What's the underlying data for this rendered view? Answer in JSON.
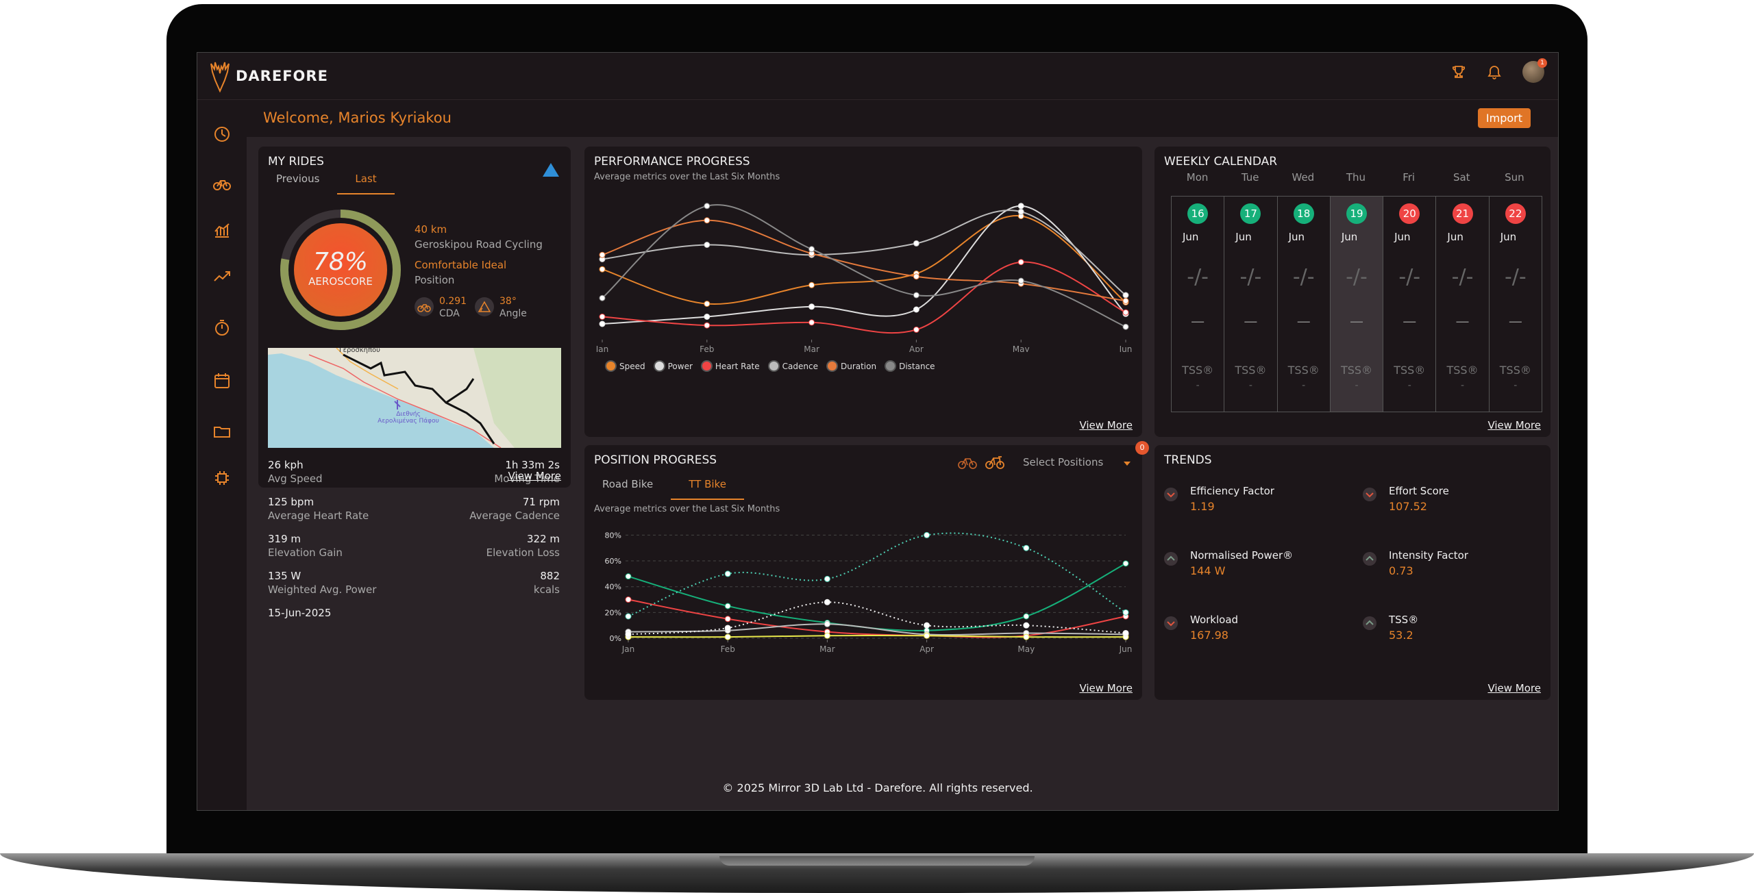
{
  "app": {
    "logo_text": "DAREFORE",
    "avatar_badge": "1"
  },
  "welcome": {
    "text": "Welcome, Marios Kyriakou",
    "import_label": "Import"
  },
  "colors": {
    "accent": "#e7842b",
    "green": "#16b07a",
    "red": "#ef4444"
  },
  "sidebar": {
    "icons": [
      "dashboard-icon",
      "bike-icon",
      "bar-chart-icon",
      "trend-icon",
      "stopwatch-icon",
      "calendar-icon",
      "folder-icon",
      "chip-icon"
    ]
  },
  "my_rides": {
    "title": "MY RIDES",
    "tabs": [
      "Previous",
      "Last"
    ],
    "active_tab": "Last",
    "score": {
      "value": "78%",
      "label": "AEROSCORE",
      "fill": 0.78
    },
    "distance": "40 km",
    "route": "Geroskipou Road Cycling",
    "position_label": "Comfortable Ideal",
    "position_sub": "Position",
    "cda_value": "0.291",
    "cda_label": "CDA",
    "angle_value": "38°",
    "angle_label": "Angle",
    "map_label_1": "Γεροσκήπου",
    "map_label_2": "Διεθνής Αερολιμένας Πάφου",
    "stats": [
      {
        "v": "26 kph",
        "l": "Avg Speed",
        "rv": "1h 33m 2s",
        "rl": "Moving Time"
      },
      {
        "v": "125 bpm",
        "l": "Average Heart Rate",
        "rv": "71 rpm",
        "rl": "Average Cadence"
      },
      {
        "v": "319 m",
        "l": "Elevation Gain",
        "rv": "322 m",
        "rl": "Elevation Loss"
      },
      {
        "v": "135 W",
        "l": "Weighted Avg. Power",
        "rv": "882",
        "rl": "kcals"
      }
    ],
    "date": "15-Jun-2025",
    "view_more": "View More"
  },
  "performance": {
    "title": "PERFORMANCE PROGRESS",
    "subtitle": "Average metrics over the Last Six Months",
    "view_more": "View More"
  },
  "position": {
    "title": "POSITION PROGRESS",
    "select_label": "Select Positions",
    "tabs": [
      "Road Bike",
      "TT Bike"
    ],
    "active_tab": "TT Bike",
    "subtitle": "Average metrics over the Last Six Months",
    "view_more": "View More",
    "badge": "0"
  },
  "calendar": {
    "title": "WEEKLY CALENDAR",
    "days": [
      {
        "name": "Mon",
        "date": "16",
        "month": "Jun",
        "color": "#16b07a",
        "today": false
      },
      {
        "name": "Tue",
        "date": "17",
        "month": "Jun",
        "color": "#16b07a",
        "today": false
      },
      {
        "name": "Wed",
        "date": "18",
        "month": "Jun",
        "color": "#16b07a",
        "today": false
      },
      {
        "name": "Thu",
        "date": "19",
        "month": "Jun",
        "color": "#16b07a",
        "today": true
      },
      {
        "name": "Fri",
        "date": "20",
        "month": "Jun",
        "color": "#ef4444",
        "today": false
      },
      {
        "name": "Sat",
        "date": "21",
        "month": "Jun",
        "color": "#ef4444",
        "today": false
      },
      {
        "name": "Sun",
        "date": "22",
        "month": "Jun",
        "color": "#ef4444",
        "today": false
      }
    ],
    "placeholder": "-/-",
    "small_placeholder": "—",
    "tss_label": "TSS®",
    "tss_value": "-",
    "view_more": "View More"
  },
  "trends": {
    "title": "TRENDS",
    "items": [
      {
        "name": "Efficiency Factor",
        "value": "1.19",
        "dir": "down"
      },
      {
        "name": "Effort Score",
        "value": "107.52",
        "dir": "down"
      },
      {
        "name": "Normalised Power®",
        "value": "144 W",
        "dir": "up"
      },
      {
        "name": "Intensity Factor",
        "value": "0.73",
        "dir": "up"
      },
      {
        "name": "Workload",
        "value": "167.98",
        "dir": "down"
      },
      {
        "name": "TSS®",
        "value": "53.2",
        "dir": "up"
      }
    ],
    "view_more": "View More"
  },
  "footer": "© 2025 Mirror 3D Lab Ltd - Darefore. All rights reserved.",
  "chart_data": [
    {
      "type": "line",
      "title": "PERFORMANCE PROGRESS",
      "subtitle": "Average metrics over the Last Six Months",
      "categories": [
        "Jan",
        "Feb",
        "Mar",
        "Apr",
        "May",
        "Jun"
      ],
      "ylim": [
        0,
        100
      ],
      "grid": false,
      "legend": "bottom-left",
      "series": [
        {
          "name": "Speed",
          "color": "#e7842b",
          "values": [
            48,
            24,
            37,
            45,
            85,
            25
          ]
        },
        {
          "name": "Power",
          "color": "#dddddd",
          "values": [
            10,
            15,
            22,
            20,
            92,
            17
          ]
        },
        {
          "name": "Heart Rate",
          "color": "#ef4444",
          "values": [
            15,
            9,
            11,
            6,
            53,
            18
          ]
        },
        {
          "name": "Cadence",
          "color": "#bbbbbb",
          "values": [
            55,
            65,
            58,
            66,
            88,
            30
          ]
        },
        {
          "name": "Duration",
          "color": "#e57a3c",
          "values": [
            58,
            82,
            59,
            43,
            38,
            26
          ]
        },
        {
          "name": "Distance",
          "color": "#888888",
          "values": [
            28,
            92,
            62,
            30,
            40,
            8
          ]
        }
      ]
    },
    {
      "type": "line",
      "title": "POSITION PROGRESS",
      "subtitle": "Average metrics over the Last Six Months",
      "categories": [
        "Jan",
        "Feb",
        "Mar",
        "Apr",
        "May",
        "Jun"
      ],
      "yticks": [
        "0%",
        "20%",
        "40%",
        "60%",
        "80%"
      ],
      "ylim": [
        0,
        85
      ],
      "grid": true,
      "series": [
        {
          "color": "#16b07a",
          "dotted": false,
          "values": [
            48,
            25,
            12,
            6,
            17,
            58
          ]
        },
        {
          "color": "#ef4444",
          "dotted": false,
          "values": [
            30,
            15,
            5,
            2,
            2,
            17
          ]
        },
        {
          "color": "#bbbbbb",
          "dotted": false,
          "values": [
            5,
            6,
            11,
            3,
            4,
            3
          ]
        },
        {
          "color": "#e8e84b",
          "dotted": false,
          "values": [
            1,
            1,
            2,
            2,
            1,
            1
          ]
        },
        {
          "color": "#4fd1b5",
          "dotted": true,
          "values": [
            17,
            50,
            46,
            80,
            70,
            20
          ]
        },
        {
          "color": "#eeeeee",
          "dotted": true,
          "values": [
            3,
            8,
            28,
            10,
            10,
            4
          ]
        }
      ]
    }
  ]
}
